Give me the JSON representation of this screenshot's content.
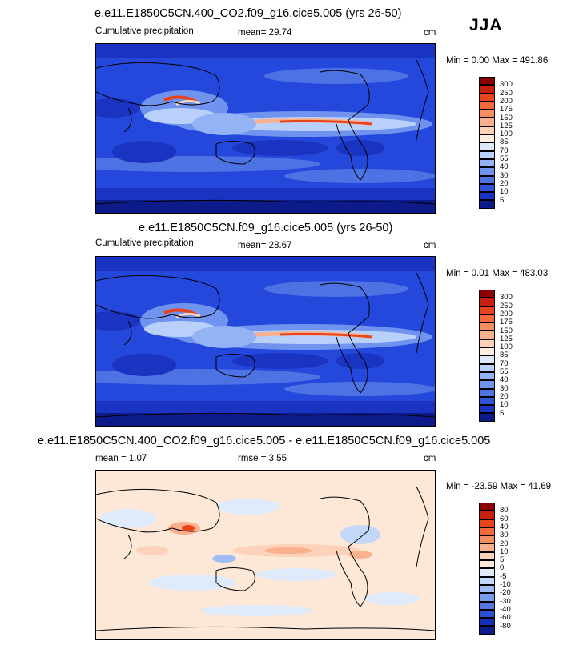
{
  "season": "JJA",
  "panels": [
    {
      "title": "e.e11.E1850C5CN.400_CO2.f09_g16.cice5.005 (yrs 26-50)",
      "left_label": "Cumulative precipitation",
      "mean_label": "mean=  29.74",
      "unit": "cm",
      "minmax": "Min =   0.00 Max = 491.86",
      "legend_ticks": [
        "300",
        "250",
        "200",
        "175",
        "150",
        "125",
        "100",
        "85",
        "70",
        "55",
        "40",
        "30",
        "20",
        "10",
        "5"
      ]
    },
    {
      "title": "e.e11.E1850C5CN.f09_g16.cice5.005 (yrs 26-50)",
      "left_label": "Cumulative precipitation",
      "mean_label": "mean=  28.67",
      "unit": "cm",
      "minmax": "Min =   0.01 Max = 483.03",
      "legend_ticks": [
        "300",
        "250",
        "200",
        "175",
        "150",
        "125",
        "100",
        "85",
        "70",
        "55",
        "40",
        "30",
        "20",
        "10",
        "5"
      ]
    },
    {
      "title": "e.e11.E1850C5CN.400_CO2.f09_g16.cice5.005 - e.e11.E1850C5CN.f09_g16.cice5.005",
      "left_label": "mean =   1.07",
      "mean_label": "rmse =   3.55",
      "unit": "cm",
      "minmax": "Min = -23.59 Max =  41.69",
      "legend_ticks": [
        "80",
        "60",
        "40",
        "30",
        "20",
        "10",
        "5",
        "0",
        "-5",
        "-10",
        "-20",
        "-30",
        "-40",
        "-60",
        "-80"
      ]
    }
  ],
  "colors": {
    "precip_scale": [
      "#8b0000",
      "#c8200f",
      "#e8451c",
      "#f46a3a",
      "#f78e5f",
      "#f9b08c",
      "#fcd2bb",
      "#fdeee2",
      "#dce8fb",
      "#b9d0fa",
      "#93b3f5",
      "#6f93ee",
      "#4d72e3",
      "#2f52d8",
      "#1a33c0",
      "#0d1a8a"
    ],
    "diff_scale": [
      "#8b0000",
      "#c8200f",
      "#e8451c",
      "#f46a3a",
      "#f78e5f",
      "#f9b08c",
      "#fcd2bb",
      "#fde7d7",
      "#dfeafb",
      "#c3d7f8",
      "#9fbcf3",
      "#7a9cec",
      "#5478e0",
      "#2d4fd2",
      "#1630b8",
      "#0d1a8a"
    ]
  }
}
